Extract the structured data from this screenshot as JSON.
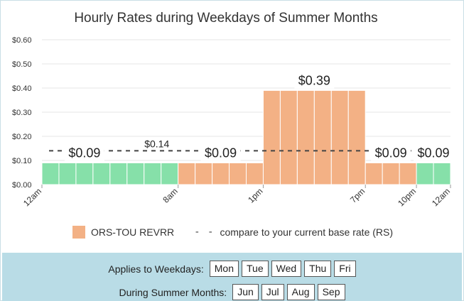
{
  "chart_data": {
    "type": "bar",
    "title": "Hourly Rates during Weekdays of Summer Months",
    "ylim": [
      0,
      0.6
    ],
    "y_ticks": [
      "$0.00",
      "$0.10",
      "$0.20",
      "$0.30",
      "$0.40",
      "$0.50",
      "$0.60"
    ],
    "y_tick_values": [
      0,
      0.1,
      0.2,
      0.3,
      0.4,
      0.5,
      0.6
    ],
    "x_tick_hours": [
      0,
      8,
      13,
      19,
      22,
      24
    ],
    "x_ticks": [
      "12am",
      "8am",
      "1pm",
      "7pm",
      "10pm",
      "12am"
    ],
    "hourly_values": [
      0.09,
      0.09,
      0.09,
      0.09,
      0.09,
      0.09,
      0.09,
      0.09,
      0.09,
      0.09,
      0.09,
      0.09,
      0.09,
      0.39,
      0.39,
      0.39,
      0.39,
      0.39,
      0.39,
      0.09,
      0.09,
      0.09,
      0.09,
      0.09
    ],
    "hourly_colors": [
      "#86e0a9",
      "#86e0a9",
      "#86e0a9",
      "#86e0a9",
      "#86e0a9",
      "#86e0a9",
      "#86e0a9",
      "#86e0a9",
      "#f3b185",
      "#f3b185",
      "#f3b185",
      "#f3b185",
      "#f3b185",
      "#f3b185",
      "#f3b185",
      "#f3b185",
      "#f3b185",
      "#f3b185",
      "#f3b185",
      "#f3b185",
      "#f3b185",
      "#f3b185",
      "#86e0a9",
      "#86e0a9"
    ],
    "base_rate": 0.14,
    "base_rate_label": "$0.14",
    "rate_labels": [
      {
        "text": "$0.09",
        "hour": 2.5,
        "value": 0.09
      },
      {
        "text": "$0.09",
        "hour": 10.5,
        "value": 0.09
      },
      {
        "text": "$0.39",
        "hour": 16,
        "value": 0.39
      },
      {
        "text": "$0.09",
        "hour": 20.5,
        "value": 0.09
      },
      {
        "text": "$0.09",
        "hour": 23,
        "value": 0.09
      }
    ],
    "base_label_hour": 6.5,
    "series": [
      {
        "name": "ORS-TOU REVRR",
        "color": "#f3b185"
      },
      {
        "name": "compare to your current base rate (RS)",
        "style": "dashed"
      }
    ]
  },
  "legend": {
    "primary": "ORS-TOU REVRR",
    "compare": "compare to your current base rate (RS)"
  },
  "filters": {
    "weekdays_label": "Applies to Weekdays:",
    "weekdays": [
      "Mon",
      "Tue",
      "Wed",
      "Thu",
      "Fri"
    ],
    "months_label": "During Summer Months:",
    "months": [
      "Jun",
      "Jul",
      "Aug",
      "Sep"
    ]
  }
}
